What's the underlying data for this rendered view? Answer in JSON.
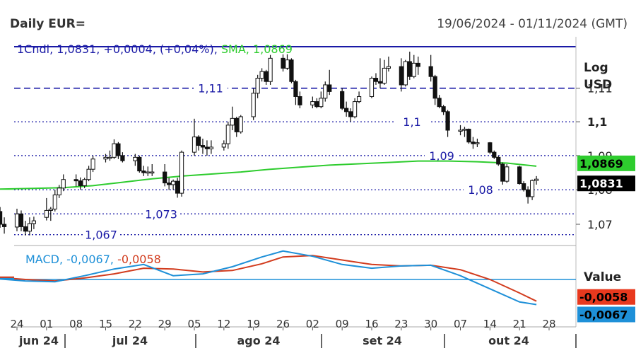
{
  "header": {
    "title": "Daily EUR=",
    "date_range": "19/06/2024 - 01/11/2024 (GMT)"
  },
  "legend_price": {
    "series": "1Cndl",
    "last": "1,0831",
    "change": "+0,0004",
    "change_pct": "(+0,04%)",
    "sma_label": "SMA",
    "sma_value": "1,0869"
  },
  "legend_macd": {
    "label": "MACD",
    "macd": "-0,0067",
    "signal": "-0,0058"
  },
  "axis_titles": {
    "scale": "Log",
    "currency": "USD",
    "value": "Value"
  },
  "y_ticks": [
    {
      "label": "1,11",
      "value": 1.11,
      "bold": false
    },
    {
      "label": "1,1",
      "value": 1.1,
      "bold": true
    },
    {
      "label": "1,09",
      "value": 1.09,
      "bold": false
    },
    {
      "label": "1,08",
      "value": 1.08,
      "bold": false
    },
    {
      "label": "1,07",
      "value": 1.07,
      "bold": false
    }
  ],
  "x_ticks": [
    "24",
    "01",
    "08",
    "15",
    "22",
    "29",
    "05",
    "12",
    "19",
    "26",
    "02",
    "09",
    "16",
    "23",
    "30",
    "07",
    "14",
    "21",
    "28"
  ],
  "months": [
    "jun 24",
    "jul 24",
    "ago 24",
    "set 24",
    "out 24"
  ],
  "badges": {
    "sma": "1,0869",
    "last": "1,0831",
    "signal": "-0,0058",
    "macd": "-0,0067"
  },
  "colors": {
    "candle": "#111111",
    "sma": "#2ecc2e",
    "level_line": "#1a1aa6",
    "macd": "#1e90d8",
    "signal": "#d23c1e",
    "zero_line": "#1e90d8",
    "badge_last": "#000000",
    "badge_macd": "#1e90d8",
    "badge_signal": "#e8391e"
  },
  "chart_data": {
    "type": "candlestick",
    "instrument": "EUR=",
    "interval": "Daily",
    "y_scale": "log",
    "ylim": [
      1.0645,
      1.1255
    ],
    "grid": false,
    "levels": [
      {
        "label": "1,11",
        "value": 1.11,
        "style": "dashed"
      },
      {
        "label": "1,1",
        "value": 1.1,
        "style": "dotted"
      },
      {
        "label": "1,09",
        "value": 1.09,
        "style": "dotted"
      },
      {
        "label": "1,08",
        "value": 1.08,
        "style": "dotted"
      },
      {
        "label": "1,073",
        "value": 1.073,
        "style": "dotted"
      },
      {
        "label": "1,067",
        "value": 1.067,
        "style": "dotted"
      }
    ],
    "candles": [
      {
        "date": "2024-06-19",
        "o": 1.0745,
        "h": 1.076,
        "l": 1.0727,
        "c": 1.0737
      },
      {
        "date": "2024-06-20",
        "o": 1.0737,
        "h": 1.075,
        "l": 1.069,
        "c": 1.07
      },
      {
        "date": "2024-06-21",
        "o": 1.07,
        "h": 1.072,
        "l": 1.0673,
        "c": 1.0693
      },
      {
        "date": "2024-06-24",
        "o": 1.0692,
        "h": 1.0745,
        "l": 1.068,
        "c": 1.073
      },
      {
        "date": "2024-06-25",
        "o": 1.073,
        "h": 1.074,
        "l": 1.068,
        "c": 1.0693
      },
      {
        "date": "2024-06-26",
        "o": 1.0693,
        "h": 1.071,
        "l": 1.0668,
        "c": 1.068
      },
      {
        "date": "2024-06-27",
        "o": 1.068,
        "h": 1.072,
        "l": 1.0668,
        "c": 1.0702
      },
      {
        "date": "2024-06-28",
        "o": 1.0702,
        "h": 1.0722,
        "l": 1.0686,
        "c": 1.071
      },
      {
        "date": "2024-07-01",
        "o": 1.072,
        "h": 1.0776,
        "l": 1.0711,
        "c": 1.074
      },
      {
        "date": "2024-07-02",
        "o": 1.074,
        "h": 1.075,
        "l": 1.071,
        "c": 1.0744
      },
      {
        "date": "2024-07-03",
        "o": 1.0744,
        "h": 1.08,
        "l": 1.0737,
        "c": 1.0785
      },
      {
        "date": "2024-07-04",
        "o": 1.0785,
        "h": 1.0814,
        "l": 1.0776,
        "c": 1.0805
      },
      {
        "date": "2024-07-05",
        "o": 1.0805,
        "h": 1.0845,
        "l": 1.0796,
        "c": 1.083
      },
      {
        "date": "2024-07-08",
        "o": 1.083,
        "h": 1.0845,
        "l": 1.081,
        "c": 1.0826
      },
      {
        "date": "2024-07-09",
        "o": 1.0826,
        "h": 1.0836,
        "l": 1.08,
        "c": 1.0812
      },
      {
        "date": "2024-07-10",
        "o": 1.0812,
        "h": 1.0835,
        "l": 1.0805,
        "c": 1.083
      },
      {
        "date": "2024-07-11",
        "o": 1.083,
        "h": 1.087,
        "l": 1.0825,
        "c": 1.086
      },
      {
        "date": "2024-07-12",
        "o": 1.086,
        "h": 1.09,
        "l": 1.0852,
        "c": 1.089
      },
      {
        "date": "2024-07-15",
        "o": 1.089,
        "h": 1.0905,
        "l": 1.088,
        "c": 1.0895
      },
      {
        "date": "2024-07-16",
        "o": 1.0895,
        "h": 1.0915,
        "l": 1.0885,
        "c": 1.0895
      },
      {
        "date": "2024-07-17",
        "o": 1.0895,
        "h": 1.0948,
        "l": 1.089,
        "c": 1.0935
      },
      {
        "date": "2024-07-18",
        "o": 1.0935,
        "h": 1.094,
        "l": 1.089,
        "c": 1.09
      },
      {
        "date": "2024-07-19",
        "o": 1.09,
        "h": 1.091,
        "l": 1.088,
        "c": 1.0885
      },
      {
        "date": "2024-07-22",
        "o": 1.0885,
        "h": 1.0905,
        "l": 1.087,
        "c": 1.0895
      },
      {
        "date": "2024-07-23",
        "o": 1.0895,
        "h": 1.09,
        "l": 1.085,
        "c": 1.0855
      },
      {
        "date": "2024-07-24",
        "o": 1.0855,
        "h": 1.087,
        "l": 1.084,
        "c": 1.085
      },
      {
        "date": "2024-07-25",
        "o": 1.085,
        "h": 1.0868,
        "l": 1.084,
        "c": 1.0852
      },
      {
        "date": "2024-07-26",
        "o": 1.0852,
        "h": 1.0875,
        "l": 1.084,
        "c": 1.0852
      },
      {
        "date": "2024-07-29",
        "o": 1.0852,
        "h": 1.0875,
        "l": 1.081,
        "c": 1.082
      },
      {
        "date": "2024-07-30",
        "o": 1.082,
        "h": 1.0835,
        "l": 1.08,
        "c": 1.0815
      },
      {
        "date": "2024-07-31",
        "o": 1.0815,
        "h": 1.083,
        "l": 1.08,
        "c": 1.0825
      },
      {
        "date": "2024-08-01",
        "o": 1.0825,
        "h": 1.0835,
        "l": 1.0777,
        "c": 1.079
      },
      {
        "date": "2024-08-02",
        "o": 1.079,
        "h": 1.0915,
        "l": 1.078,
        "c": 1.091
      },
      {
        "date": "2024-08-05",
        "o": 1.091,
        "h": 1.1009,
        "l": 1.09,
        "c": 1.0955
      },
      {
        "date": "2024-08-06",
        "o": 1.0955,
        "h": 1.096,
        "l": 1.0915,
        "c": 1.093
      },
      {
        "date": "2024-08-07",
        "o": 1.093,
        "h": 1.095,
        "l": 1.0905,
        "c": 1.0925
      },
      {
        "date": "2024-08-08",
        "o": 1.0925,
        "h": 1.0945,
        "l": 1.09,
        "c": 1.092
      },
      {
        "date": "2024-08-09",
        "o": 1.092,
        "h": 1.0945,
        "l": 1.0905,
        "c": 1.0925
      },
      {
        "date": "2024-08-12",
        "o": 1.0925,
        "h": 1.0945,
        "l": 1.0915,
        "c": 1.0935
      },
      {
        "date": "2024-08-13",
        "o": 1.0935,
        "h": 1.1,
        "l": 1.092,
        "c": 1.099
      },
      {
        "date": "2024-08-14",
        "o": 1.099,
        "h": 1.1045,
        "l": 1.0975,
        "c": 1.101
      },
      {
        "date": "2024-08-15",
        "o": 1.101,
        "h": 1.1015,
        "l": 1.0955,
        "c": 1.097
      },
      {
        "date": "2024-08-16",
        "o": 1.097,
        "h": 1.102,
        "l": 1.0965,
        "c": 1.1015
      },
      {
        "date": "2024-08-19",
        "o": 1.1015,
        "h": 1.11,
        "l": 1.1005,
        "c": 1.1085
      },
      {
        "date": "2024-08-20",
        "o": 1.1085,
        "h": 1.114,
        "l": 1.107,
        "c": 1.113
      },
      {
        "date": "2024-08-21",
        "o": 1.113,
        "h": 1.116,
        "l": 1.112,
        "c": 1.115
      },
      {
        "date": "2024-08-22",
        "o": 1.115,
        "h": 1.1155,
        "l": 1.111,
        "c": 1.112
      },
      {
        "date": "2024-08-23",
        "o": 1.112,
        "h": 1.12,
        "l": 1.111,
        "c": 1.119
      },
      {
        "date": "2024-08-26",
        "o": 1.119,
        "h": 1.1202,
        "l": 1.115,
        "c": 1.116
      },
      {
        "date": "2024-08-27",
        "o": 1.116,
        "h": 1.1202,
        "l": 1.1155,
        "c": 1.1185
      },
      {
        "date": "2024-08-28",
        "o": 1.1185,
        "h": 1.119,
        "l": 1.1115,
        "c": 1.112
      },
      {
        "date": "2024-08-29",
        "o": 1.112,
        "h": 1.1125,
        "l": 1.105,
        "c": 1.1075
      },
      {
        "date": "2024-08-30",
        "o": 1.1075,
        "h": 1.109,
        "l": 1.104,
        "c": 1.105
      },
      {
        "date": "2024-09-02",
        "o": 1.105,
        "h": 1.1075,
        "l": 1.104,
        "c": 1.106
      },
      {
        "date": "2024-09-03",
        "o": 1.106,
        "h": 1.107,
        "l": 1.104,
        "c": 1.1045
      },
      {
        "date": "2024-09-04",
        "o": 1.1045,
        "h": 1.109,
        "l": 1.104,
        "c": 1.107
      },
      {
        "date": "2024-09-05",
        "o": 1.107,
        "h": 1.112,
        "l": 1.106,
        "c": 1.111
      },
      {
        "date": "2024-09-06",
        "o": 1.111,
        "h": 1.1155,
        "l": 1.108,
        "c": 1.109
      },
      {
        "date": "2024-09-09",
        "o": 1.109,
        "h": 1.11,
        "l": 1.1035,
        "c": 1.104
      },
      {
        "date": "2024-09-10",
        "o": 1.104,
        "h": 1.106,
        "l": 1.1015,
        "c": 1.103
      },
      {
        "date": "2024-09-11",
        "o": 1.103,
        "h": 1.104,
        "l": 1.1,
        "c": 1.1015
      },
      {
        "date": "2024-09-12",
        "o": 1.1015,
        "h": 1.107,
        "l": 1.101,
        "c": 1.106
      },
      {
        "date": "2024-09-13",
        "o": 1.106,
        "h": 1.109,
        "l": 1.1055,
        "c": 1.1075
      },
      {
        "date": "2024-09-16",
        "o": 1.1075,
        "h": 1.1135,
        "l": 1.107,
        "c": 1.113
      },
      {
        "date": "2024-09-17",
        "o": 1.113,
        "h": 1.1145,
        "l": 1.111,
        "c": 1.112
      },
      {
        "date": "2024-09-18",
        "o": 1.112,
        "h": 1.119,
        "l": 1.11,
        "c": 1.1115
      },
      {
        "date": "2024-09-19",
        "o": 1.1115,
        "h": 1.1185,
        "l": 1.111,
        "c": 1.116
      },
      {
        "date": "2024-09-20",
        "o": 1.116,
        "h": 1.1195,
        "l": 1.115,
        "c": 1.1165
      },
      {
        "date": "2024-09-23",
        "o": 1.1165,
        "h": 1.119,
        "l": 1.109,
        "c": 1.111
      },
      {
        "date": "2024-09-24",
        "o": 1.111,
        "h": 1.1185,
        "l": 1.1105,
        "c": 1.118
      },
      {
        "date": "2024-09-25",
        "o": 1.118,
        "h": 1.121,
        "l": 1.1125,
        "c": 1.1135
      },
      {
        "date": "2024-09-26",
        "o": 1.1135,
        "h": 1.12,
        "l": 1.113,
        "c": 1.1175
      },
      {
        "date": "2024-09-27",
        "o": 1.1175,
        "h": 1.1195,
        "l": 1.114,
        "c": 1.1165
      },
      {
        "date": "2024-09-30",
        "o": 1.1165,
        "h": 1.12,
        "l": 1.112,
        "c": 1.1135
      },
      {
        "date": "2024-10-01",
        "o": 1.1135,
        "h": 1.114,
        "l": 1.105,
        "c": 1.107
      },
      {
        "date": "2024-10-02",
        "o": 1.107,
        "h": 1.108,
        "l": 1.104,
        "c": 1.1045
      },
      {
        "date": "2024-10-03",
        "o": 1.1045,
        "h": 1.105,
        "l": 1.102,
        "c": 1.103
      },
      {
        "date": "2024-10-04",
        "o": 1.103,
        "h": 1.1035,
        "l": 1.0955,
        "c": 1.0975
      },
      {
        "date": "2024-10-07",
        "o": 1.0975,
        "h": 1.099,
        "l": 1.096,
        "c": 1.0975
      },
      {
        "date": "2024-10-08",
        "o": 1.0975,
        "h": 1.0985,
        "l": 1.0955,
        "c": 1.0978
      },
      {
        "date": "2024-10-09",
        "o": 1.0978,
        "h": 1.098,
        "l": 1.0935,
        "c": 1.094
      },
      {
        "date": "2024-10-10",
        "o": 1.094,
        "h": 1.0955,
        "l": 1.092,
        "c": 1.0935
      },
      {
        "date": "2024-10-11",
        "o": 1.0935,
        "h": 1.095,
        "l": 1.0925,
        "c": 1.0938
      },
      {
        "date": "2024-10-14",
        "o": 1.0938,
        "h": 1.094,
        "l": 1.0905,
        "c": 1.091
      },
      {
        "date": "2024-10-15",
        "o": 1.091,
        "h": 1.0915,
        "l": 1.089,
        "c": 1.0895
      },
      {
        "date": "2024-10-16",
        "o": 1.0895,
        "h": 1.09,
        "l": 1.087,
        "c": 1.0875
      },
      {
        "date": "2024-10-17",
        "o": 1.0875,
        "h": 1.088,
        "l": 1.0815,
        "c": 1.0825
      },
      {
        "date": "2024-10-18",
        "o": 1.0825,
        "h": 1.0875,
        "l": 1.082,
        "c": 1.0867
      },
      {
        "date": "2024-10-21",
        "o": 1.0867,
        "h": 1.087,
        "l": 1.0815,
        "c": 1.0818
      },
      {
        "date": "2024-10-22",
        "o": 1.0818,
        "h": 1.0825,
        "l": 1.0795,
        "c": 1.08
      },
      {
        "date": "2024-10-23",
        "o": 1.08,
        "h": 1.081,
        "l": 1.076,
        "c": 1.078
      },
      {
        "date": "2024-10-24",
        "o": 1.078,
        "h": 1.083,
        "l": 1.077,
        "c": 1.0827
      },
      {
        "date": "2024-10-25",
        "o": 1.0827,
        "h": 1.084,
        "l": 1.0815,
        "c": 1.0831
      }
    ],
    "sma": [
      {
        "date": "2024-06-19",
        "v": 1.0802
      },
      {
        "date": "2024-06-28",
        "v": 1.0804
      },
      {
        "date": "2024-07-05",
        "v": 1.0806
      },
      {
        "date": "2024-07-12",
        "v": 1.0812
      },
      {
        "date": "2024-07-19",
        "v": 1.0822
      },
      {
        "date": "2024-07-26",
        "v": 1.0832
      },
      {
        "date": "2024-08-02",
        "v": 1.084
      },
      {
        "date": "2024-08-09",
        "v": 1.0846
      },
      {
        "date": "2024-08-16",
        "v": 1.0852
      },
      {
        "date": "2024-08-23",
        "v": 1.086
      },
      {
        "date": "2024-08-30",
        "v": 1.0866
      },
      {
        "date": "2024-09-06",
        "v": 1.0872
      },
      {
        "date": "2024-09-13",
        "v": 1.0876
      },
      {
        "date": "2024-09-20",
        "v": 1.088
      },
      {
        "date": "2024-09-27",
        "v": 1.0884
      },
      {
        "date": "2024-10-04",
        "v": 1.0884
      },
      {
        "date": "2024-10-11",
        "v": 1.0882
      },
      {
        "date": "2024-10-18",
        "v": 1.0878
      },
      {
        "date": "2024-10-25",
        "v": 1.0869
      }
    ],
    "macd_panel": {
      "ylim": [
        -0.0085,
        0.0085
      ],
      "zero_line": 0,
      "macd": [
        {
          "date": "2024-06-19",
          "v": 0.0002
        },
        {
          "date": "2024-06-26",
          "v": -0.0004
        },
        {
          "date": "2024-07-03",
          "v": -0.0006
        },
        {
          "date": "2024-07-10",
          "v": 0.001
        },
        {
          "date": "2024-07-17",
          "v": 0.0028
        },
        {
          "date": "2024-07-24",
          "v": 0.004
        },
        {
          "date": "2024-07-31",
          "v": 0.001
        },
        {
          "date": "2024-08-07",
          "v": 0.0015
        },
        {
          "date": "2024-08-14",
          "v": 0.0034
        },
        {
          "date": "2024-08-21",
          "v": 0.006
        },
        {
          "date": "2024-08-26",
          "v": 0.0076
        },
        {
          "date": "2024-09-02",
          "v": 0.0062
        },
        {
          "date": "2024-09-09",
          "v": 0.004
        },
        {
          "date": "2024-09-16",
          "v": 0.003
        },
        {
          "date": "2024-09-23",
          "v": 0.0036
        },
        {
          "date": "2024-09-30",
          "v": 0.0038
        },
        {
          "date": "2024-10-07",
          "v": 0.001
        },
        {
          "date": "2024-10-14",
          "v": -0.0025
        },
        {
          "date": "2024-10-21",
          "v": -0.006
        },
        {
          "date": "2024-10-25",
          "v": -0.0067
        }
      ],
      "signal": [
        {
          "date": "2024-06-19",
          "v": 0.0006
        },
        {
          "date": "2024-06-26",
          "v": 0.0
        },
        {
          "date": "2024-07-03",
          "v": -0.0004
        },
        {
          "date": "2024-07-10",
          "v": 0.0004
        },
        {
          "date": "2024-07-17",
          "v": 0.0015
        },
        {
          "date": "2024-07-24",
          "v": 0.003
        },
        {
          "date": "2024-07-31",
          "v": 0.0028
        },
        {
          "date": "2024-08-07",
          "v": 0.002
        },
        {
          "date": "2024-08-14",
          "v": 0.0024
        },
        {
          "date": "2024-08-21",
          "v": 0.0042
        },
        {
          "date": "2024-08-26",
          "v": 0.006
        },
        {
          "date": "2024-09-02",
          "v": 0.0064
        },
        {
          "date": "2024-09-09",
          "v": 0.0052
        },
        {
          "date": "2024-09-16",
          "v": 0.004
        },
        {
          "date": "2024-09-23",
          "v": 0.0036
        },
        {
          "date": "2024-09-30",
          "v": 0.0038
        },
        {
          "date": "2024-10-07",
          "v": 0.0026
        },
        {
          "date": "2024-10-14",
          "v": 0.0
        },
        {
          "date": "2024-10-21",
          "v": -0.0036
        },
        {
          "date": "2024-10-25",
          "v": -0.0058
        }
      ]
    }
  }
}
